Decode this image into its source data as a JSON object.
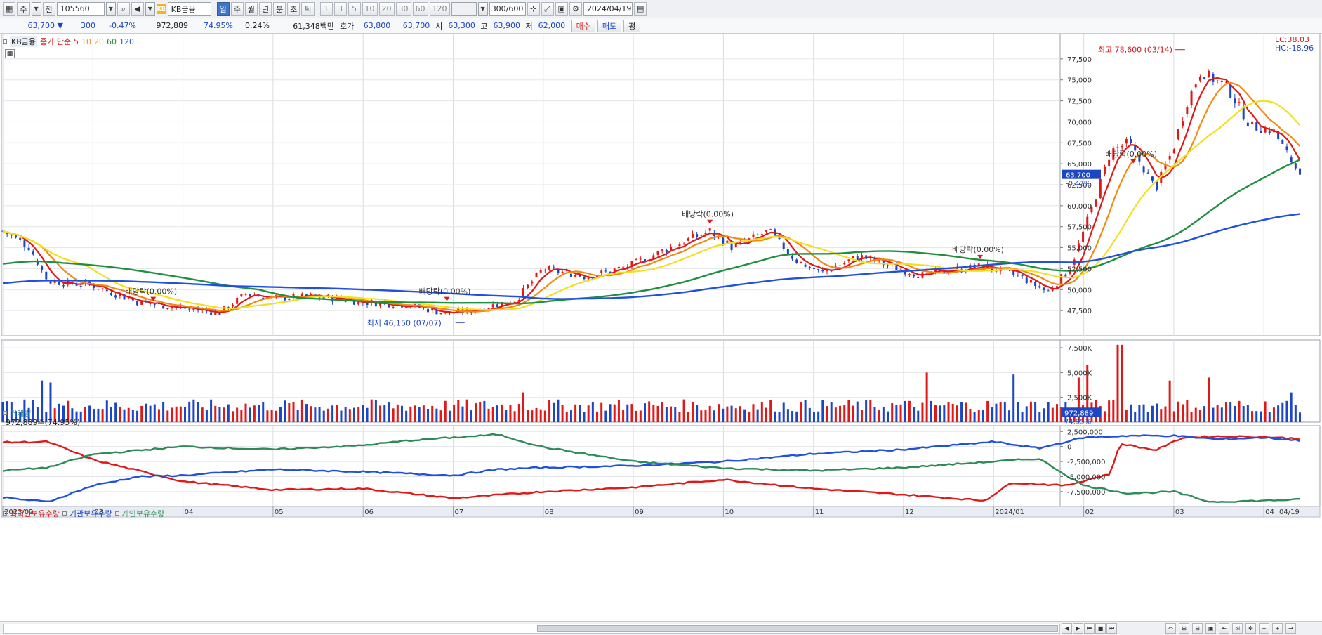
{
  "toolbar": {
    "period_label": "주",
    "ref_label": "전",
    "stock_code": "105560",
    "stock_name": "KB금융",
    "logo_text": "KB",
    "interval_buttons": [
      "일",
      "주",
      "월",
      "년",
      "분",
      "초",
      "틱"
    ],
    "selected_interval": "일",
    "minute_steps": [
      "1",
      "3",
      "5",
      "10",
      "20",
      "30",
      "60",
      "120"
    ],
    "count_value": "300",
    "count_max": "/600",
    "date_value": "2024/04/19"
  },
  "quote": {
    "price": "63,700",
    "change": "300",
    "change_pct": "-0.47%",
    "volume": "972,889",
    "volume_ratio": "74.95%",
    "turnover_pct": "0.24%",
    "amount": "61,348백만",
    "bid_label": "호가",
    "ask": "63,800",
    "bid": "63,700",
    "open_label": "시",
    "open": "63,300",
    "high_label": "고",
    "high": "63,900",
    "low_label": "저",
    "low": "62,000",
    "buy_label": "매수",
    "sell_label": "매도",
    "avg_label": "평"
  },
  "price_panel": {
    "stock_label": "KB금융",
    "ma_title": "종가 단순",
    "ma_periods": [
      "5",
      "10",
      "20",
      "60",
      "120"
    ],
    "ma_colors": [
      "#e01818",
      "#f28a10",
      "#f2e020",
      "#209040",
      "#2050e0"
    ],
    "lc_label": "LC:38.03",
    "hc_label": "HC:-18.96",
    "current_price_tag": "63,700",
    "current_pct_tag": "-0.47%",
    "y_ticks": [
      "77,500",
      "75,000",
      "72,500",
      "70,000",
      "67,500",
      "65,000",
      "62,500",
      "60,000",
      "57,500",
      "55,000",
      "52,500",
      "50,000",
      "47,500"
    ],
    "high_annotation": "최고 78,600 (03/14)",
    "low_annotation": "최저 46,150 (07/07)",
    "dividend_labels": [
      "배당락(0.00%)",
      "배당락(0.00%)",
      "배당락(0.00%)",
      "배당락(0.00%)",
      "배당락(0.00%)"
    ]
  },
  "volume_panel": {
    "title": "거래량",
    "subtitle": "972,889주(74.95%)",
    "y_ticks": [
      "7,500K",
      "5,000K",
      "2,500K"
    ],
    "current_tag": "972,889",
    "current_pct_tag": "74.95%"
  },
  "holdings_panel": {
    "labels": [
      "외국인보유수량",
      "기관보유수량",
      "개인보유수량"
    ],
    "colors": [
      "#e01818",
      "#2050e0",
      "#2e8b57"
    ],
    "y_ticks": [
      "2,500,000",
      "0",
      "-2,500,000",
      "-5,000,000",
      "-7,500,000"
    ]
  },
  "x_axis": {
    "labels": [
      "2023/02",
      "03",
      "04",
      "05",
      "06",
      "07",
      "08",
      "09",
      "10",
      "11",
      "12",
      "2024/01",
      "02",
      "03",
      "04",
      "04/19"
    ]
  },
  "chart_data": {
    "type": "candlestick",
    "title": "KB금융",
    "months": [
      "2023/02",
      "03",
      "04",
      "05",
      "06",
      "07",
      "08",
      "09",
      "10",
      "11",
      "12",
      "2024/01",
      "02",
      "03",
      "04"
    ],
    "close_anchors": [
      {
        "month_pos": 0.0,
        "close": 57000
      },
      {
        "month_pos": 0.3,
        "close": 55000
      },
      {
        "month_pos": 0.5,
        "close": 51000
      },
      {
        "month_pos": 1.0,
        "close": 50500
      },
      {
        "month_pos": 1.5,
        "close": 48500
      },
      {
        "month_pos": 2.0,
        "close": 47800
      },
      {
        "month_pos": 2.4,
        "close": 47200
      },
      {
        "month_pos": 2.7,
        "close": 49500
      },
      {
        "month_pos": 3.0,
        "close": 49000
      },
      {
        "month_pos": 3.5,
        "close": 49200
      },
      {
        "month_pos": 4.0,
        "close": 48500
      },
      {
        "month_pos": 4.5,
        "close": 48200
      },
      {
        "month_pos": 4.9,
        "close": 47200
      },
      {
        "month_pos": 5.2,
        "close": 47500
      },
      {
        "month_pos": 5.7,
        "close": 48800
      },
      {
        "month_pos": 6.0,
        "close": 52500
      },
      {
        "month_pos": 6.5,
        "close": 51500
      },
      {
        "month_pos": 7.0,
        "close": 53000
      },
      {
        "month_pos": 7.5,
        "close": 55500
      },
      {
        "month_pos": 7.85,
        "close": 57000
      },
      {
        "month_pos": 8.1,
        "close": 55000
      },
      {
        "month_pos": 8.5,
        "close": 57000
      },
      {
        "month_pos": 8.8,
        "close": 53500
      },
      {
        "month_pos": 9.1,
        "close": 52000
      },
      {
        "month_pos": 9.5,
        "close": 54000
      },
      {
        "month_pos": 9.8,
        "close": 53000
      },
      {
        "month_pos": 10.2,
        "close": 51700
      },
      {
        "month_pos": 10.5,
        "close": 52300
      },
      {
        "month_pos": 10.9,
        "close": 52800
      },
      {
        "month_pos": 11.3,
        "close": 51500
      },
      {
        "month_pos": 11.6,
        "close": 49700
      },
      {
        "month_pos": 11.85,
        "close": 52500
      },
      {
        "month_pos": 12.1,
        "close": 60000
      },
      {
        "month_pos": 12.3,
        "close": 66500
      },
      {
        "month_pos": 12.5,
        "close": 67500
      },
      {
        "month_pos": 12.8,
        "close": 62000
      },
      {
        "month_pos": 13.0,
        "close": 67000
      },
      {
        "month_pos": 13.15,
        "close": 72500
      },
      {
        "month_pos": 13.3,
        "close": 76000
      },
      {
        "month_pos": 13.6,
        "close": 74000
      },
      {
        "month_pos": 13.85,
        "close": 69500
      },
      {
        "month_pos": 14.1,
        "close": 69000
      },
      {
        "month_pos": 14.4,
        "close": 63700
      }
    ],
    "ma_series": [
      {
        "name": "5",
        "smoothing": 1
      },
      {
        "name": "10",
        "smoothing": 2
      },
      {
        "name": "20",
        "smoothing": 4
      },
      {
        "name": "60",
        "smoothing": 12
      },
      {
        "name": "120",
        "smoothing": 24
      }
    ],
    "ylim": [
      45000,
      80000
    ],
    "last_close": 63700,
    "period_high": {
      "value": 78600,
      "date": "03/14"
    },
    "period_low": {
      "value": 46150,
      "date": "07/07"
    },
    "volume_ylim": [
      0,
      8000000
    ],
    "volume_spikes": [
      {
        "month_pos": 0.45,
        "value": 4200000
      },
      {
        "month_pos": 0.55,
        "value": 4000000
      },
      {
        "month_pos": 5.8,
        "value": 3000000
      },
      {
        "month_pos": 10.25,
        "value": 5000000
      },
      {
        "month_pos": 11.2,
        "value": 4800000
      },
      {
        "month_pos": 11.95,
        "value": 4500000
      },
      {
        "month_pos": 12.02,
        "value": 5800000
      },
      {
        "month_pos": 12.4,
        "value": 7800000
      },
      {
        "month_pos": 12.95,
        "value": 4200000
      },
      {
        "month_pos": 13.4,
        "value": 4500000
      },
      {
        "month_pos": 14.3,
        "value": 3000000
      }
    ],
    "last_volume": 972889,
    "holdings_ylim": [
      -9500000,
      3000000
    ],
    "holdings": [
      {
        "name": "외국인보유수량",
        "anchors": [
          [
            0,
            700000
          ],
          [
            0.5,
            800000
          ],
          [
            1.0,
            -2200000
          ],
          [
            2.0,
            -5800000
          ],
          [
            3.0,
            -7200000
          ],
          [
            4.0,
            -7000000
          ],
          [
            5.0,
            -8600000
          ],
          [
            6.0,
            -7500000
          ],
          [
            7.0,
            -6800000
          ],
          [
            8.0,
            -5500000
          ],
          [
            9.0,
            -7000000
          ],
          [
            10.0,
            -8000000
          ],
          [
            10.9,
            -9000000
          ],
          [
            11.2,
            -6000000
          ],
          [
            11.8,
            -6500000
          ],
          [
            12.3,
            -4500000
          ],
          [
            12.4,
            500000
          ],
          [
            12.8,
            -600000
          ],
          [
            13.1,
            1500000
          ],
          [
            13.5,
            1700000
          ],
          [
            14.0,
            1600000
          ],
          [
            14.4,
            1300000
          ]
        ]
      },
      {
        "name": "기관보유수량",
        "anchors": [
          [
            0,
            -8500000
          ],
          [
            0.5,
            -9200000
          ],
          [
            1.0,
            -6500000
          ],
          [
            1.5,
            -5000000
          ],
          [
            2.0,
            -4800000
          ],
          [
            3.0,
            -3800000
          ],
          [
            4.0,
            -4200000
          ],
          [
            5.0,
            -4800000
          ],
          [
            5.5,
            -3800000
          ],
          [
            6.0,
            -3500000
          ],
          [
            7.0,
            -3200000
          ],
          [
            8.0,
            -2500000
          ],
          [
            9.0,
            -1200000
          ],
          [
            10.0,
            -500000
          ],
          [
            11.0,
            800000
          ],
          [
            11.5,
            -300000
          ],
          [
            12.0,
            1500000
          ],
          [
            12.5,
            1800000
          ],
          [
            13.0,
            1800000
          ],
          [
            13.5,
            1200000
          ],
          [
            14.0,
            1500000
          ],
          [
            14.4,
            1000000
          ]
        ]
      },
      {
        "name": "개인보유수량",
        "anchors": [
          [
            0,
            -4000000
          ],
          [
            0.5,
            -3500000
          ],
          [
            1.0,
            -1300000
          ],
          [
            2.0,
            0
          ],
          [
            3.0,
            -500000
          ],
          [
            4.0,
            200000
          ],
          [
            4.5,
            1000000
          ],
          [
            5.0,
            1500000
          ],
          [
            5.5,
            2000000
          ],
          [
            6.0,
            -100000
          ],
          [
            7.0,
            -2500000
          ],
          [
            8.0,
            -3600000
          ],
          [
            9.0,
            -4000000
          ],
          [
            10.0,
            -3500000
          ],
          [
            11.0,
            -2500000
          ],
          [
            11.5,
            -2000000
          ],
          [
            12.0,
            -6500000
          ],
          [
            12.5,
            -7800000
          ],
          [
            13.0,
            -7500000
          ],
          [
            13.4,
            -9200000
          ],
          [
            14.0,
            -9000000
          ],
          [
            14.4,
            -8800000
          ]
        ]
      }
    ]
  }
}
